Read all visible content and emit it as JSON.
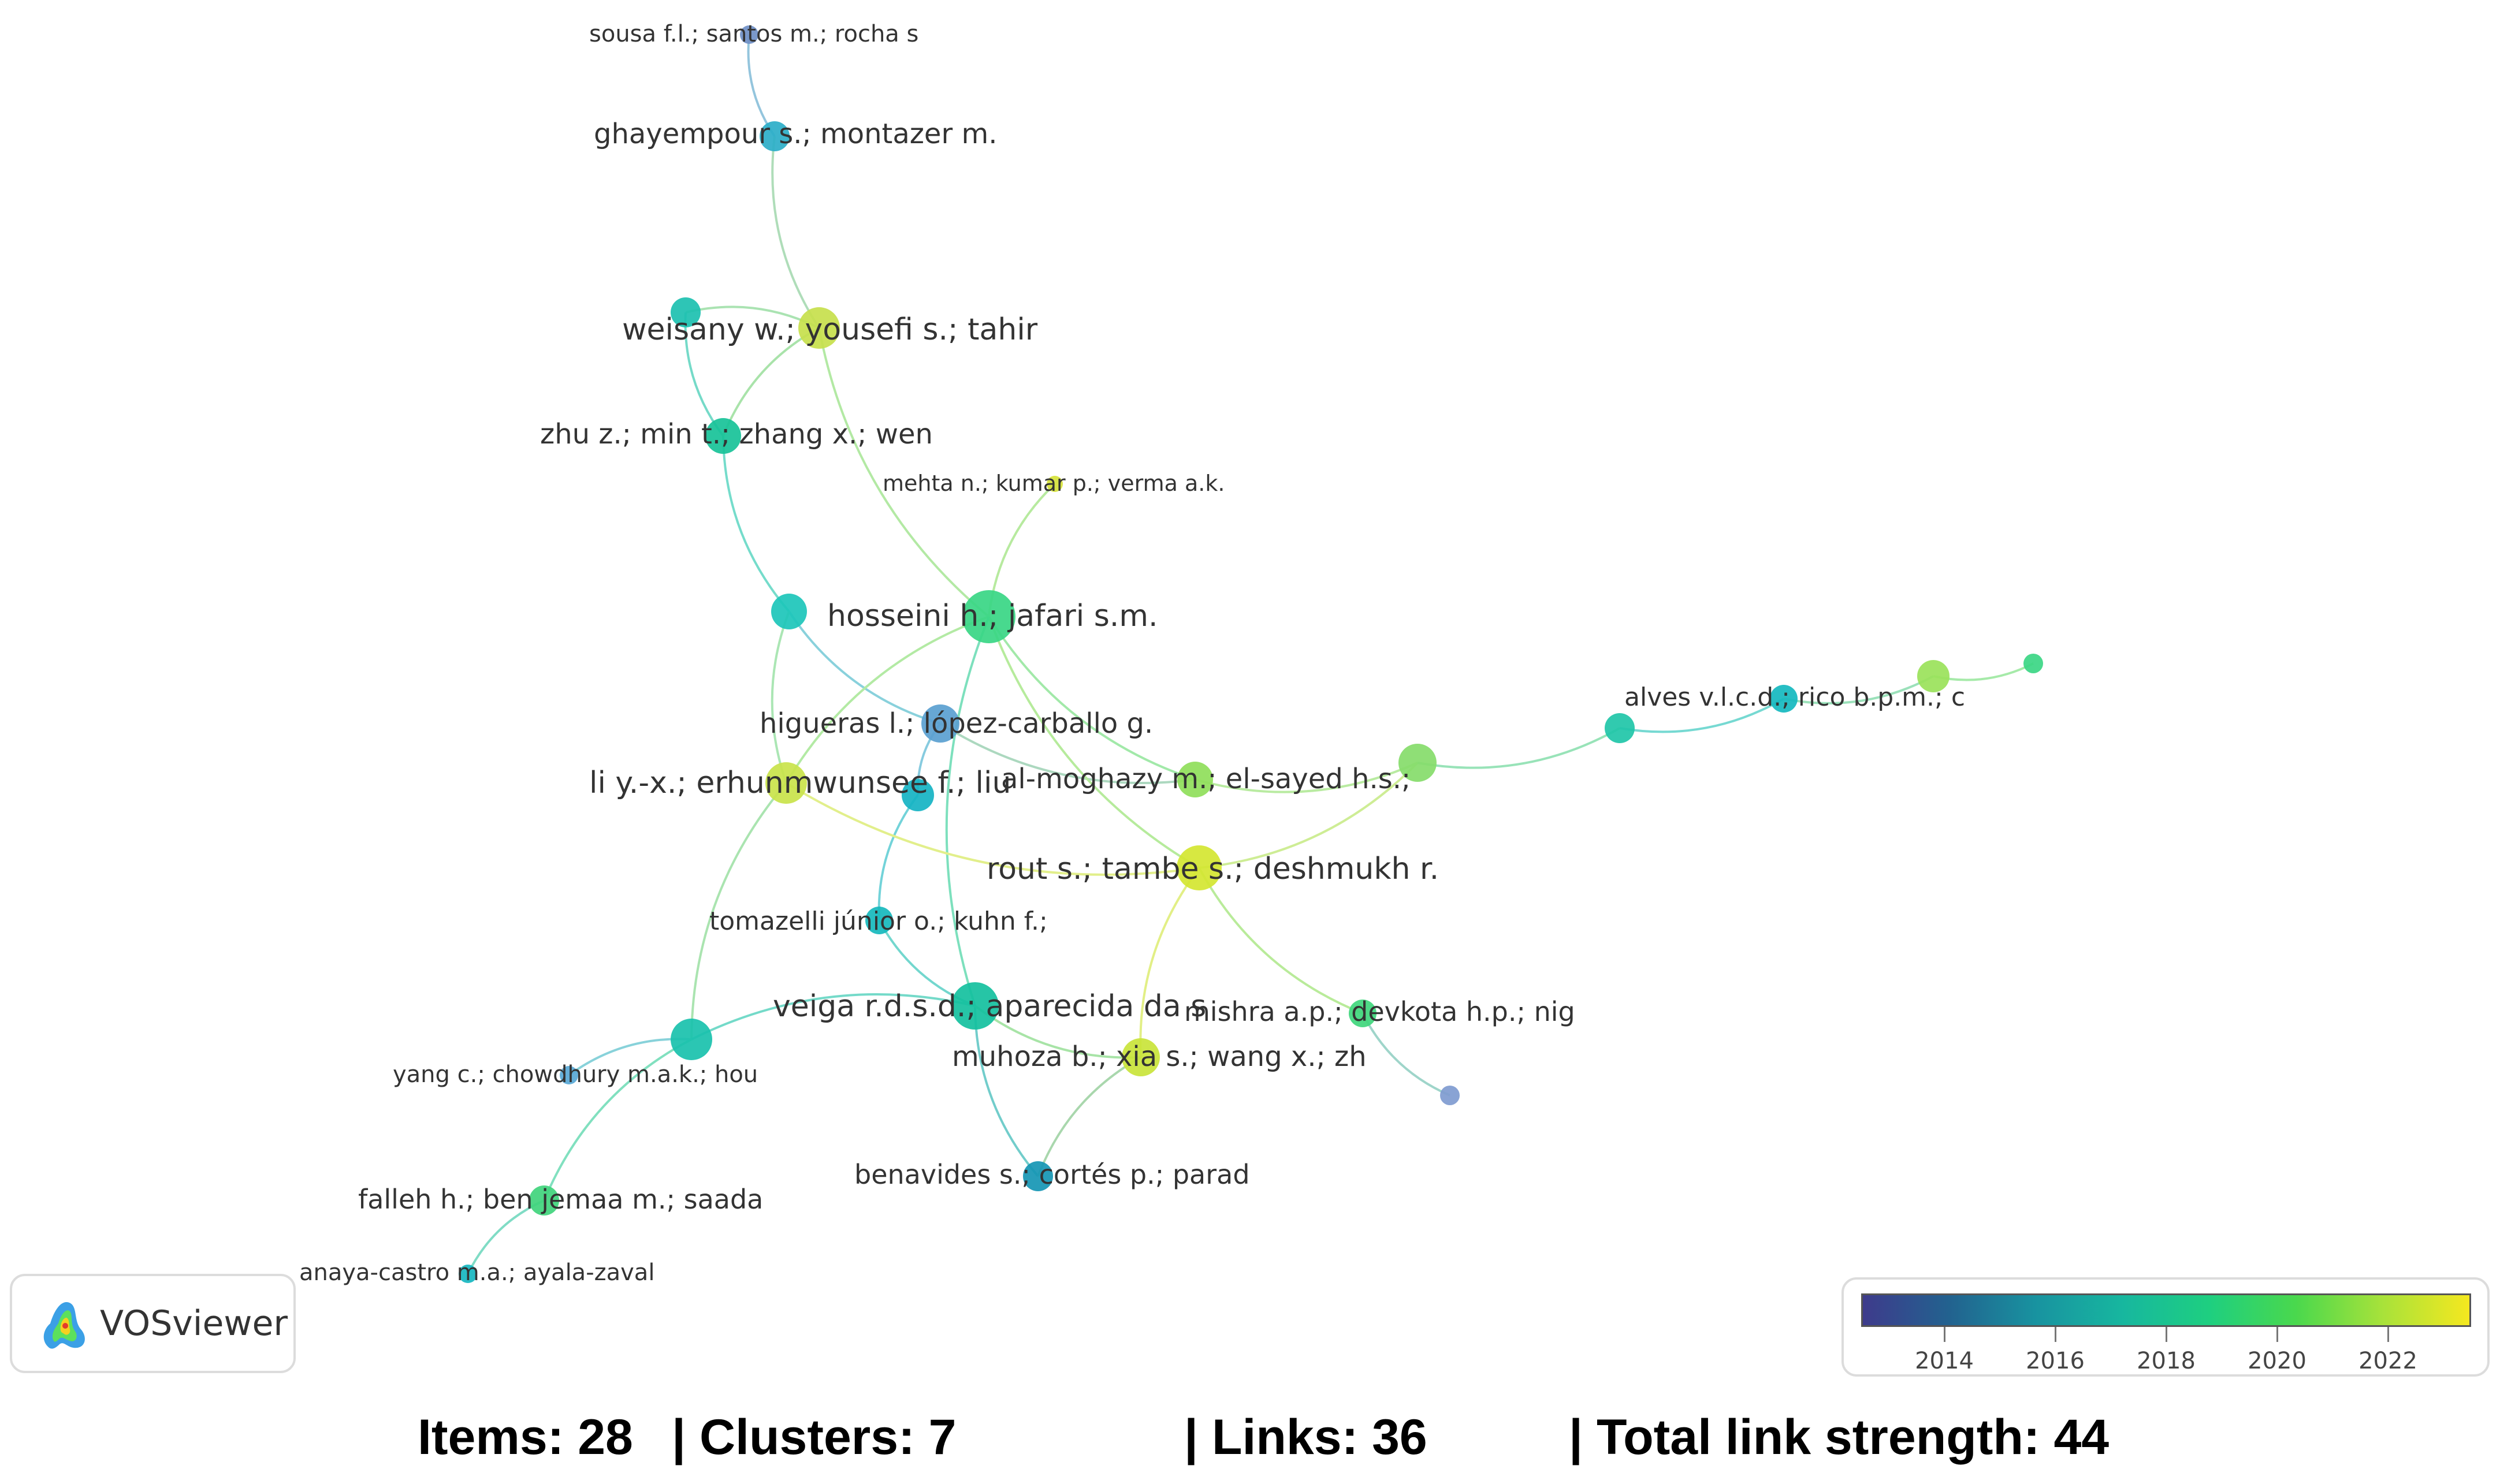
{
  "network": {
    "nodes": [
      {
        "id": "n1",
        "label": "sousa f.l.; santos m.; rocha s",
        "color": "#6f8fc6"
      },
      {
        "id": "n2",
        "label": "ghayempour s.; montazer m.",
        "color": "#2baec8"
      },
      {
        "id": "n3",
        "label": "weisany w.; yousefi s.; tahir",
        "color": "#c7e04c"
      },
      {
        "id": "n4",
        "label": "",
        "color": "#1cc0b0"
      },
      {
        "id": "n5",
        "label": "zhu z.; min t.; zhang x.; wen",
        "color": "#17c298"
      },
      {
        "id": "n6",
        "label": "mehta n.; kumar p.; verma a.k.",
        "color": "#d6e23a"
      },
      {
        "id": "n7",
        "label": "hosseini h.; jafari s.m.",
        "color": "#38d684"
      },
      {
        "id": "n8",
        "label": "",
        "color": "#1cc6ba"
      },
      {
        "id": "n9",
        "label": "higueras l.; lópez-carballo g.",
        "color": "#5a9fd0"
      },
      {
        "id": "n10",
        "label": "li y.-x.; erhunmwunsee f.; liu",
        "color": "#c9e34a"
      },
      {
        "id": "n11",
        "label": "",
        "color": "#15b3c3"
      },
      {
        "id": "n12",
        "label": "al-moghazy m.; el-sayed h.s.;",
        "color": "#8fde5a"
      },
      {
        "id": "n13",
        "label": "",
        "color": "#86dc6a"
      },
      {
        "id": "n14",
        "label": "",
        "color": "#20c6a8"
      },
      {
        "id": "n15",
        "label": "alves v.l.c.d.; rico b.p.m.; c",
        "color": "#15b8bf"
      },
      {
        "id": "n16",
        "label": "",
        "color": "#9ae25a"
      },
      {
        "id": "n17",
        "label": "",
        "color": "#3bd684"
      },
      {
        "id": "n18",
        "label": "rout s.; tambe s.; deshmukh r.",
        "color": "#d4e631"
      },
      {
        "id": "n19",
        "label": "tomazelli júnior o.; kuhn f.;",
        "color": "#16b9bd"
      },
      {
        "id": "n20",
        "label": "veiga r.d.s.d.; aparecida da s",
        "color": "#14c09e"
      },
      {
        "id": "n21",
        "label": "mishra a.p.; devkota h.p.; nig",
        "color": "#3fd67c"
      },
      {
        "id": "n22",
        "label": "muhoza b.; xia s.; wang x.; zh",
        "color": "#c9e43a"
      },
      {
        "id": "n23",
        "label": "",
        "color": "#19c1ad"
      },
      {
        "id": "n24",
        "label": "yang c.; chowdhury m.a.k.; hou",
        "color": "#58a8d6"
      },
      {
        "id": "n25",
        "label": "",
        "color": "#7f9bd0"
      },
      {
        "id": "n26",
        "label": "benavides s.; cortés p.; parad",
        "color": "#1596b4"
      },
      {
        "id": "n27",
        "label": "falleh h.; ben jemaa m.; saada",
        "color": "#40d47c"
      },
      {
        "id": "n28",
        "label": "anaya-castro m.a.; ayala-zaval",
        "color": "#16b6c0"
      }
    ],
    "edges": [
      [
        "n1",
        "n2"
      ],
      [
        "n2",
        "n3"
      ],
      [
        "n3",
        "n4"
      ],
      [
        "n4",
        "n5"
      ],
      [
        "n3",
        "n5"
      ],
      [
        "n3",
        "n7"
      ],
      [
        "n5",
        "n8"
      ],
      [
        "n6",
        "n7"
      ],
      [
        "n8",
        "n9"
      ],
      [
        "n8",
        "n10"
      ],
      [
        "n7",
        "n10"
      ],
      [
        "n9",
        "n11"
      ],
      [
        "n9",
        "n12"
      ],
      [
        "n7",
        "n12"
      ],
      [
        "n7",
        "n18"
      ],
      [
        "n7",
        "n20"
      ],
      [
        "n11",
        "n19"
      ],
      [
        "n19",
        "n20"
      ],
      [
        "n20",
        "n26"
      ],
      [
        "n18",
        "n22"
      ],
      [
        "n18",
        "n21"
      ],
      [
        "n21",
        "n25"
      ],
      [
        "n18",
        "n13"
      ],
      [
        "n12",
        "n13"
      ],
      [
        "n13",
        "n14"
      ],
      [
        "n14",
        "n15"
      ],
      [
        "n15",
        "n16"
      ],
      [
        "n16",
        "n17"
      ],
      [
        "n10",
        "n23"
      ],
      [
        "n20",
        "n23"
      ],
      [
        "n23",
        "n24"
      ],
      [
        "n23",
        "n27"
      ],
      [
        "n27",
        "n28"
      ],
      [
        "n20",
        "n22"
      ],
      [
        "n22",
        "n26"
      ],
      [
        "n10",
        "n18"
      ]
    ]
  },
  "logo": {
    "text": "VOSviewer"
  },
  "legend": {
    "ticks": [
      "2014",
      "2016",
      "2018",
      "2020",
      "2022"
    ],
    "range": [
      2012.5,
      2023.5
    ],
    "tick_values": [
      2014,
      2016,
      2018,
      2020,
      2022
    ],
    "colors": [
      "#3e3b8c",
      "#22628f",
      "#1893a0",
      "#17b79f",
      "#1ecf80",
      "#4ad84d",
      "#a8e23a",
      "#f5e81f"
    ]
  },
  "stats": {
    "items": "Items: 28",
    "clusters": "| Clusters: 7",
    "links": "| Links: 36",
    "total": "| Total link strength: 44"
  }
}
